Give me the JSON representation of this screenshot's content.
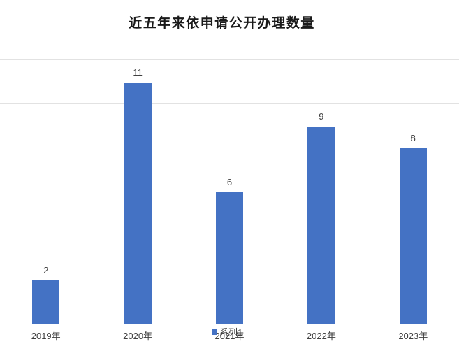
{
  "title": "近五年来依申请公开办理数量",
  "legend": {
    "label": "系列1",
    "swatch_color": "#4472c4",
    "position": "bottom"
  },
  "chart_data": {
    "type": "bar",
    "title": "近五年来依申请公开办理数量",
    "categories": [
      "2019年",
      "2020年",
      "2021年",
      "2022年",
      "2023年"
    ],
    "series": [
      {
        "name": "系列1",
        "values": [
          2,
          11,
          6,
          9,
          8
        ]
      }
    ],
    "data_labels": [
      "2",
      "11",
      "6",
      "9",
      "8"
    ],
    "xlabel": "",
    "ylabel": "",
    "ylim": [
      0,
      12
    ],
    "gridline_step": 2,
    "grid": true,
    "y_tick_labels_visible": false,
    "legend_position": "bottom",
    "bar_color": "#4472c4"
  },
  "colors": {
    "bar": "#4472c4",
    "gridline": "#e2e2e2",
    "axis_line": "#c3c3c3",
    "label_text": "#404040",
    "title_text": "#1a1a1a",
    "background": "#ffffff"
  }
}
